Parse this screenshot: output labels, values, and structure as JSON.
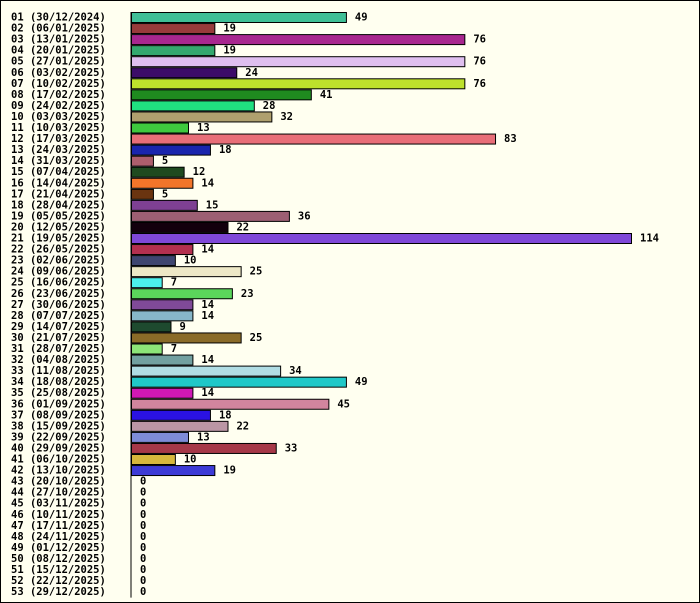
{
  "chart_data": {
    "type": "bar",
    "orientation": "horizontal",
    "title": "",
    "xlabel": "",
    "ylabel": "",
    "xlim": [
      0,
      114
    ],
    "grid": false,
    "legend": "none",
    "background": "#fffff0",
    "categories": [
      "01 (30/12/2024)",
      "02 (06/01/2025)",
      "03 (13/01/2025)",
      "04 (20/01/2025)",
      "05 (27/01/2025)",
      "06 (03/02/2025)",
      "07 (10/02/2025)",
      "08 (17/02/2025)",
      "09 (24/02/2025)",
      "10 (03/03/2025)",
      "11 (10/03/2025)",
      "12 (17/03/2025)",
      "13 (24/03/2025)",
      "14 (31/03/2025)",
      "15 (07/04/2025)",
      "16 (14/04/2025)",
      "17 (21/04/2025)",
      "18 (28/04/2025)",
      "19 (05/05/2025)",
      "20 (12/05/2025)",
      "21 (19/05/2025)",
      "22 (26/05/2025)",
      "23 (02/06/2025)",
      "24 (09/06/2025)",
      "25 (16/06/2025)",
      "26 (23/06/2025)",
      "27 (30/06/2025)",
      "28 (07/07/2025)",
      "29 (14/07/2025)",
      "30 (21/07/2025)",
      "31 (28/07/2025)",
      "32 (04/08/2025)",
      "33 (11/08/2025)",
      "34 (18/08/2025)",
      "35 (25/08/2025)",
      "36 (01/09/2025)",
      "37 (08/09/2025)",
      "38 (15/09/2025)",
      "39 (22/09/2025)",
      "40 (29/09/2025)",
      "41 (06/10/2025)",
      "42 (13/10/2025)",
      "43 (20/10/2025)",
      "44 (27/10/2025)",
      "45 (03/11/2025)",
      "46 (10/11/2025)",
      "47 (17/11/2025)",
      "48 (24/11/2025)",
      "49 (01/12/2025)",
      "50 (08/12/2025)",
      "51 (15/12/2025)",
      "52 (22/12/2025)",
      "53 (29/12/2025)"
    ],
    "values": [
      49,
      19,
      76,
      19,
      76,
      24,
      76,
      41,
      28,
      32,
      13,
      83,
      18,
      5,
      12,
      14,
      5,
      15,
      36,
      22,
      114,
      14,
      10,
      25,
      7,
      23,
      14,
      14,
      9,
      25,
      7,
      14,
      34,
      49,
      14,
      45,
      18,
      22,
      13,
      33,
      10,
      19,
      0,
      0,
      0,
      0,
      0,
      0,
      0,
      0,
      0,
      0,
      0
    ],
    "colors": [
      "#3fbf96",
      "#983b3b",
      "#a8278f",
      "#34a86e",
      "#dfbfef",
      "#3c0c68",
      "#bde12c",
      "#1f8a1f",
      "#20df80",
      "#afa06e",
      "#3ec93e",
      "#e86e78",
      "#1a25ad",
      "#ad5e6c",
      "#1f4a1f",
      "#f2752a",
      "#6a3410",
      "#7e4093",
      "#9c5f73",
      "#12000d",
      "#7f48d8",
      "#b3304f",
      "#3e4570",
      "#ede8c6",
      "#4cf0ec",
      "#5bd65b",
      "#804a98",
      "#87b6c8",
      "#1e4a2f",
      "#8a6b28",
      "#8ce478",
      "#72a0a0",
      "#b0dde4",
      "#20c8c8",
      "#d018b4",
      "#d1859e",
      "#2a12e2",
      "#bb96a5",
      "#7e8cd8",
      "#a63848",
      "#d6b73c",
      "#3d3bd6",
      "#ffffff",
      "#ffffff",
      "#ffffff",
      "#ffffff",
      "#ffffff",
      "#ffffff",
      "#ffffff",
      "#ffffff",
      "#ffffff",
      "#ffffff",
      "#ffffff"
    ]
  }
}
